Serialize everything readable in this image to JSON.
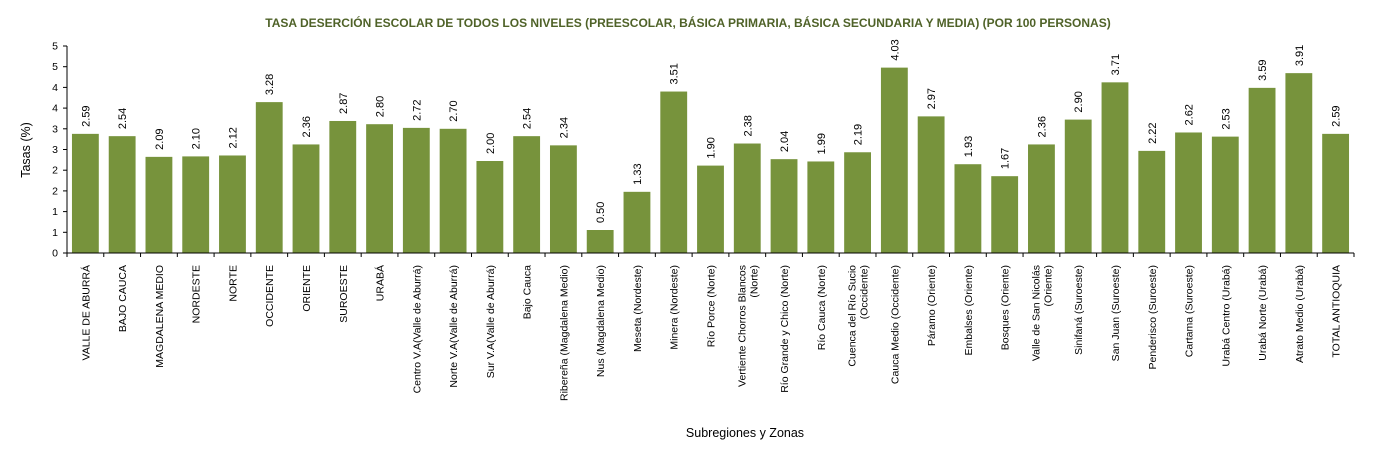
{
  "chart_data": {
    "type": "bar",
    "title": "TASA DESERCIÓN ESCOLAR DE TODOS LOS NIVELES (PREESCOLAR, BÁSICA PRIMARIA, BÁSICA SECUNDARIA Y MEDIA) (POR 100 PERSONAS)",
    "xlabel": "Subregiones y Zonas",
    "ylabel": "Tasas (%)",
    "ytick_labels": [
      "0",
      "1",
      "1",
      "2",
      "2",
      "3",
      "3",
      "4",
      "4",
      "5",
      "5"
    ],
    "ylim": [
      0,
      4.5
    ],
    "grid": false,
    "legend": "none",
    "bar_color": "#77933c",
    "categories": [
      [
        "VALLE DE ABURRÁ"
      ],
      [
        "BAJO CAUCA"
      ],
      [
        "MAGDALENA MEDIO"
      ],
      [
        "NORDESTE"
      ],
      [
        "NORTE"
      ],
      [
        "OCCIDENTE"
      ],
      [
        "ORIENTE"
      ],
      [
        "SUROESTE"
      ],
      [
        "URABÁ"
      ],
      [
        "Centro V.A(Valle de Aburrá)"
      ],
      [
        "Norte V.A(Valle de Aburrá)"
      ],
      [
        "Sur V.A(Valle de Aburrá)"
      ],
      [
        "Bajo Cauca"
      ],
      [
        "Ribereña  (Magdalena Medio)"
      ],
      [
        "Nus  (Magdalena Medio)"
      ],
      [
        "Meseta  (Nordeste)"
      ],
      [
        "Minera  (Nordeste)"
      ],
      [
        "Río Porce   (Norte)"
      ],
      [
        "Vertiente Chorros Blancos",
        "(Norte)"
      ],
      [
        "Río Grande y Chico  (Norte)"
      ],
      [
        "Río Cauca  (Norte)"
      ],
      [
        "Cuenca del Río Sucio",
        "(Occidente)"
      ],
      [
        "Cauca Medio  (Occidente)"
      ],
      [
        "Páramo  (Oriente)"
      ],
      [
        "Embalses  (Oriente)"
      ],
      [
        "Bosques  (Oriente)"
      ],
      [
        "Valle de San Nicolás",
        "(Oriente)"
      ],
      [
        "Sinifaná  (Suroeste)"
      ],
      [
        "San Juan  (Suroeste)"
      ],
      [
        "Penderisco  (Suroeste)"
      ],
      [
        "Cartama  (Suroeste)"
      ],
      [
        "Urabá Centro  (Urabá)"
      ],
      [
        "Urabá Norte  (Urabá)"
      ],
      [
        "Atrato Medio  (Urabá)"
      ],
      [
        "TOTAL ANTIOQUIA"
      ]
    ],
    "values": [
      2.59,
      2.54,
      2.09,
      2.1,
      2.12,
      3.28,
      2.36,
      2.87,
      2.8,
      2.72,
      2.7,
      2.0,
      2.54,
      2.34,
      0.5,
      1.33,
      3.51,
      1.9,
      2.38,
      2.04,
      1.99,
      2.19,
      4.03,
      2.97,
      1.93,
      1.67,
      2.36,
      2.9,
      3.71,
      2.22,
      2.62,
      2.53,
      3.59,
      3.91,
      2.59
    ],
    "value_labels": [
      "2.59",
      "2.54",
      "2.09",
      "2.10",
      "2.12",
      "3.28",
      "2.36",
      "2.87",
      "2.80",
      "2.72",
      "2.70",
      "2.00",
      "2.54",
      "2.34",
      "0.50",
      "1.33",
      "3.51",
      "1.90",
      "2.38",
      "2.04",
      "1.99",
      "2.19",
      "4.03",
      "2.97",
      "1.93",
      "1.67",
      "2.36",
      "2.90",
      "3.71",
      "2.22",
      "2.62",
      "2.53",
      "3.59",
      "3.91",
      "2.59"
    ]
  }
}
